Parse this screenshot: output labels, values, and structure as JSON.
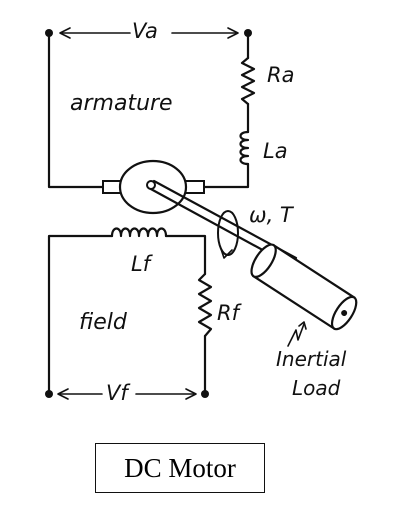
{
  "labels": {
    "va": "Va",
    "ra": "Ra",
    "armature": "armature",
    "la": "La",
    "omega_t": "ω, T",
    "lf": "Lf",
    "field": "field",
    "rf": "Rf",
    "inertial": "Inertial",
    "load": "Load",
    "vf": "Vf"
  },
  "caption": "DC Motor"
}
